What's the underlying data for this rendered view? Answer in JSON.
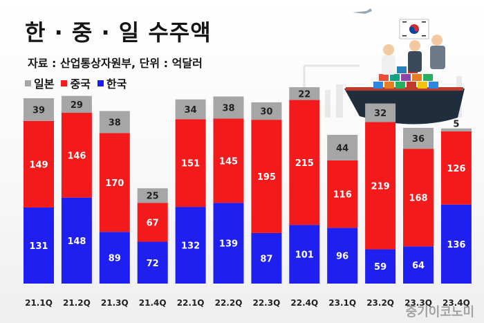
{
  "header": {
    "title": "한 · 중 · 일 수주액",
    "source": "자료 : 산업통상자원부, 단위 : 억달러"
  },
  "legend": [
    {
      "label": "일본",
      "color": "#a6a6a6"
    },
    {
      "label": "중국",
      "color": "#ff1a1a"
    },
    {
      "label": "한국",
      "color": "#1a1aff"
    }
  ],
  "watermark": "중기이코노미",
  "colors": {
    "korea": "#1f1ff0",
    "china": "#f21a1a",
    "japan": "#a6a6a6"
  },
  "chart_data": {
    "type": "bar",
    "stacked": true,
    "categories": [
      "21.1Q",
      "21.2Q",
      "21.3Q",
      "21.4Q",
      "22.1Q",
      "22.2Q",
      "22.3Q",
      "22.4Q",
      "23.1Q",
      "23.2Q",
      "23.3Q",
      "23.4Q"
    ],
    "series": [
      {
        "name": "한국",
        "values": [
          131,
          148,
          89,
          72,
          132,
          139,
          87,
          101,
          96,
          59,
          64,
          136
        ]
      },
      {
        "name": "중국",
        "values": [
          149,
          146,
          170,
          67,
          151,
          145,
          195,
          215,
          116,
          219,
          168,
          126
        ]
      },
      {
        "name": "일본",
        "values": [
          39,
          29,
          38,
          25,
          34,
          38,
          30,
          22,
          44,
          32,
          36,
          5
        ]
      }
    ]
  }
}
